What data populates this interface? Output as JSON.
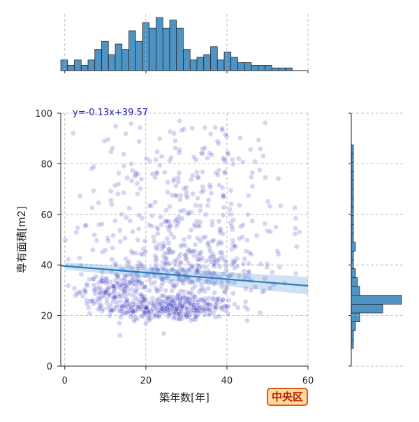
{
  "chart_data": {
    "type": "scatter",
    "title": "",
    "xlabel": "築年数[年]",
    "ylabel": "専有面積[m2]",
    "xlim": [
      -1,
      60
    ],
    "ylim": [
      0,
      100
    ],
    "x_ticks": [
      0,
      20,
      40,
      60
    ],
    "y_ticks": [
      0,
      20,
      40,
      60,
      80,
      100
    ],
    "grid": true,
    "regression": {
      "equation_text": "y=-0.13x+39.57",
      "slope": -0.13,
      "intercept": 39.57,
      "ci_halfwidth_start": 1.4,
      "ci_halfwidth_end": 3.5
    },
    "badge": "中央区",
    "point_color": "#1a1ab8",
    "point_alpha": 0.18,
    "line_color": "#2a7bbf",
    "hist_color": "#4f93c4",
    "clusters": [
      {
        "x_mean": 26,
        "x_sd": 8,
        "y_mean": 23,
        "y_sd": 2.6,
        "count": 340
      },
      {
        "x_mean": 12,
        "x_sd": 4,
        "y_mean": 30,
        "y_sd": 3,
        "count": 120
      },
      {
        "x_mean": 30,
        "x_sd": 11,
        "y_mean": 36,
        "y_sd": 6,
        "count": 280
      },
      {
        "x_mean": 28,
        "x_sd": 13,
        "y_mean": 55,
        "y_sd": 12,
        "count": 240
      },
      {
        "x_mean": 30,
        "x_sd": 14,
        "y_mean": 82,
        "y_sd": 9,
        "count": 110
      }
    ],
    "x_histogram": {
      "bin_start": -1,
      "bin_width": 1.68,
      "counts": [
        4,
        2,
        4,
        2,
        4,
        8,
        11,
        6,
        10,
        8,
        15,
        11,
        18,
        16,
        20,
        16,
        19,
        16,
        8,
        4,
        5,
        6,
        9,
        4,
        7,
        5,
        3,
        3,
        2,
        2,
        2,
        1,
        1,
        1,
        0,
        0
      ]
    },
    "y_histogram": {
      "bin_start": 0,
      "bin_width": 3.5,
      "counts": [
        0,
        0,
        1,
        1,
        2,
        4,
        15,
        24,
        4,
        3,
        2,
        1,
        1,
        2,
        1,
        1,
        1,
        1,
        1,
        1,
        1,
        1,
        1,
        1,
        1,
        0,
        0,
        0,
        0
      ]
    }
  }
}
